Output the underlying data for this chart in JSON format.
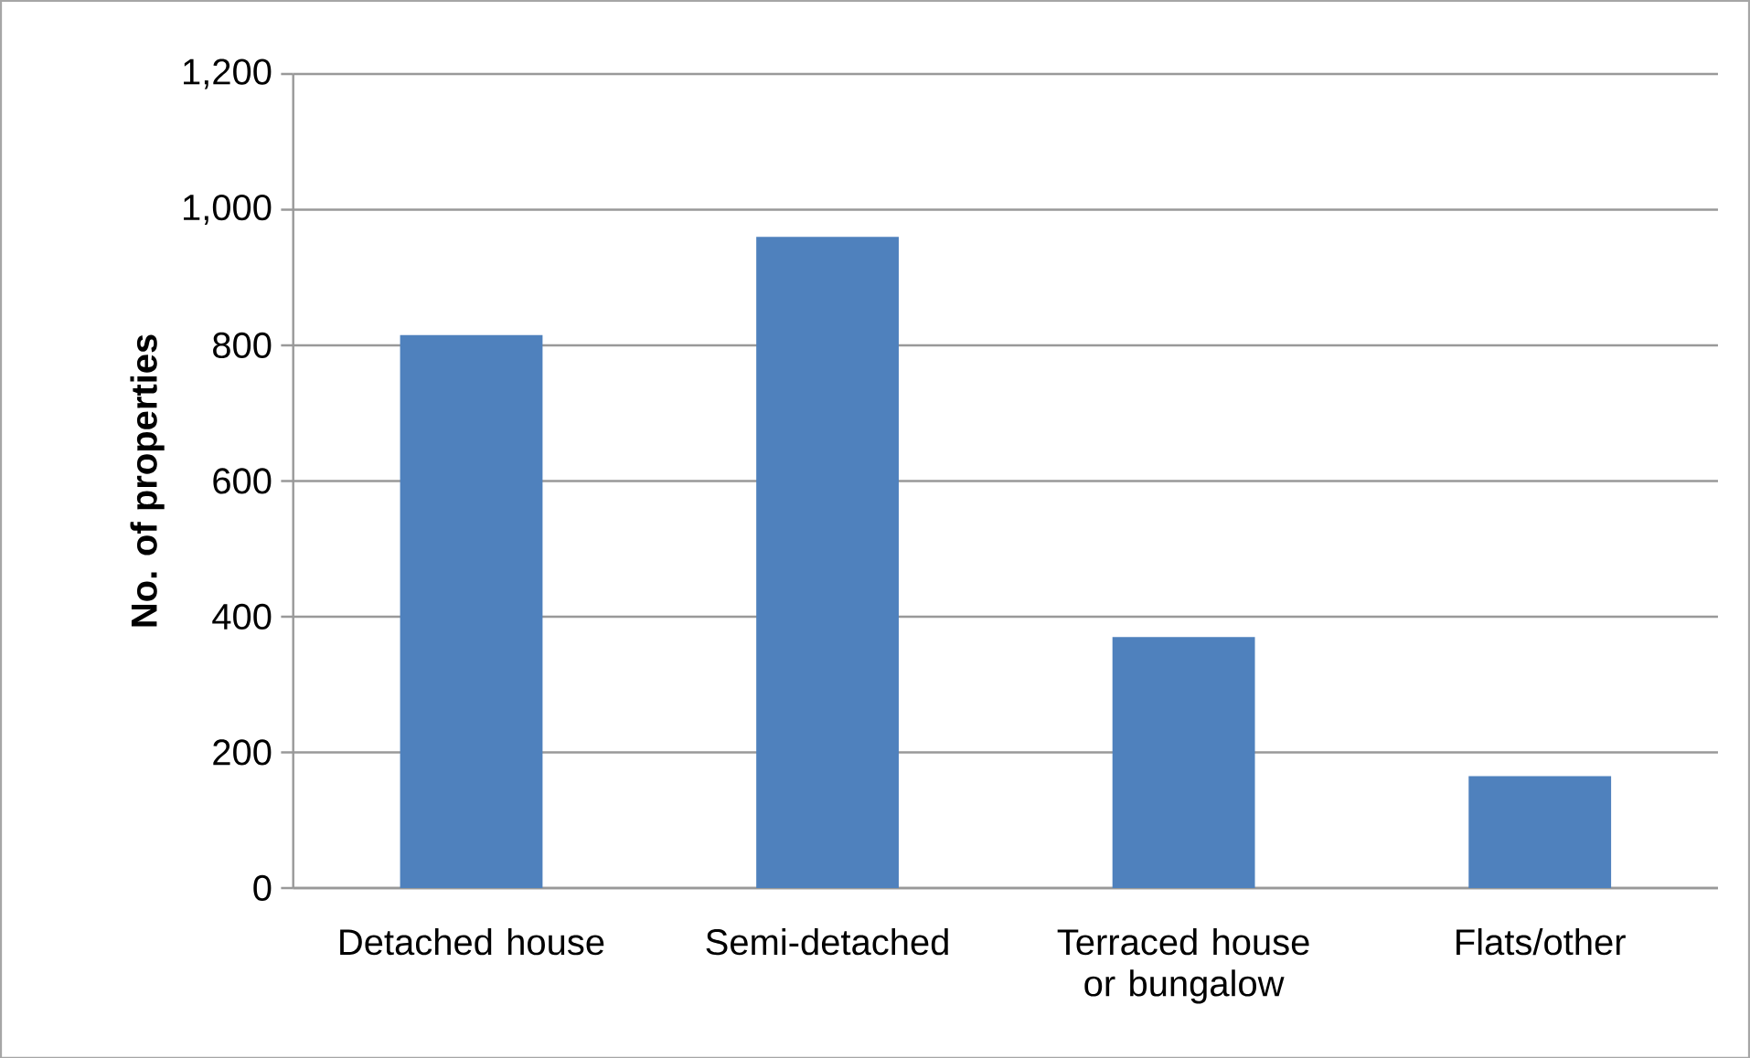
{
  "chart_data": {
    "type": "bar",
    "ylabel": "No. of properties",
    "categories": [
      "Detached house",
      "Semi-detached",
      "Terraced house or bungalow",
      "Flats/other"
    ],
    "values": [
      815,
      960,
      370,
      165
    ],
    "color": "#4f81bd",
    "ylim": [
      0,
      1200
    ],
    "yticks": [
      0,
      200,
      400,
      600,
      {
        "value": 800,
        "label": "800"
      },
      {
        "value": 1000,
        "label": "1,000"
      },
      {
        "value": 1200,
        "label": "1,200"
      }
    ],
    "grid": "y"
  }
}
